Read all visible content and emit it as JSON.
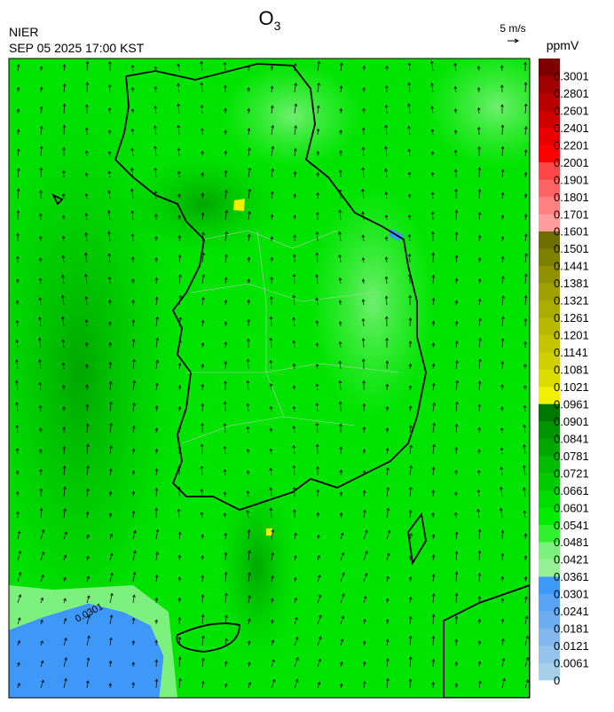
{
  "header": {
    "title": {
      "symbol": "O",
      "subscript": "3"
    },
    "agency": "NIER",
    "datetime": "SEP 05 2025 17:00 KST"
  },
  "wind_legend": {
    "label": "5 m/s"
  },
  "map": {
    "contour_label": "0.0301"
  },
  "colorbar": {
    "unit": "ppmV",
    "ticks": [
      "0",
      "0.0061",
      "0.0121",
      "0.0181",
      "0.0241",
      "0.0301",
      "0.0361",
      "0.0421",
      "0.0481",
      "0.0541",
      "0.0601",
      "0.0661",
      "0.0721",
      "0.0781",
      "0.0841",
      "0.0901",
      "0.0961",
      "0.1021",
      "0.1081",
      "0.1141",
      "0.1201",
      "0.1261",
      "0.1321",
      "0.1381",
      "0.1441",
      "0.1501",
      "0.1601",
      "0.1701",
      "0.1801",
      "0.1901",
      "0.2001",
      "0.2201",
      "0.2401",
      "0.2601",
      "0.2801",
      "0.3001"
    ],
    "colors": [
      "#a6cfea",
      "#94c4ec",
      "#82b8ee",
      "#6eaef0",
      "#58a4f2",
      "#3d98f7",
      "#96f096",
      "#7cf07c",
      "#30f030",
      "#00ec00",
      "#00dc00",
      "#00cc00",
      "#00bc00",
      "#00a800",
      "#009400",
      "#007800",
      "#f0f000",
      "#dcdc00",
      "#d0d000",
      "#c4c400",
      "#b8b800",
      "#acac00",
      "#a0a000",
      "#909000",
      "#808000",
      "#706e00",
      "#ff9c9c",
      "#ff8080",
      "#ff6464",
      "#ff4848",
      "#ff0000",
      "#e80000",
      "#d00000",
      "#b80000",
      "#a00000",
      "#800000"
    ]
  }
}
